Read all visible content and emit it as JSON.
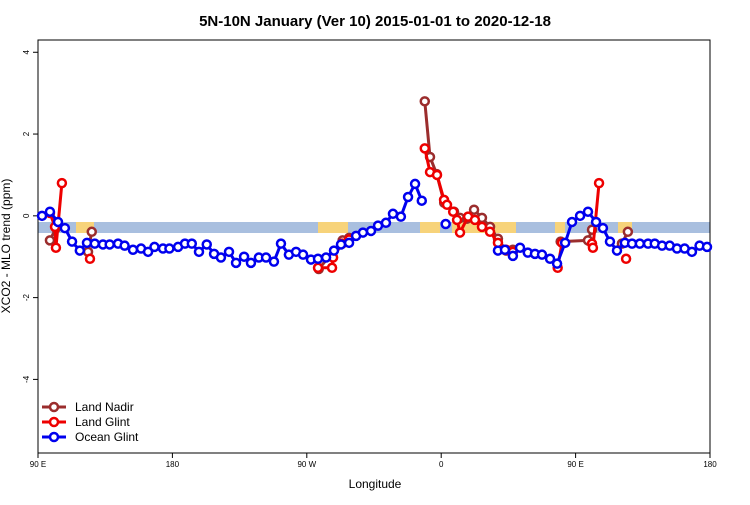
{
  "chart_data": {
    "type": "line",
    "title": "5N-10N January (Ver 10)   2015-01-01 to 2020-12-18",
    "xlabel": "Longitude",
    "ylabel": "XCO2 - MLO trend (ppm)",
    "xlim": [
      90,
      540
    ],
    "ylim": [
      -5.8,
      4.3
    ],
    "xticks": [
      {
        "value": 90,
        "label": "90 E"
      },
      180,
      {
        "value": 270,
        "label": "90 W"
      },
      {
        "value": 360,
        "label": "0"
      },
      {
        "value": 450,
        "label": "90 E"
      },
      {
        "value": 540,
        "label": "180"
      }
    ],
    "yticks": [
      4,
      2,
      0,
      -2,
      -4
    ],
    "legend": "bottom-left",
    "series": [
      {
        "name": "Land Nadir",
        "color": "#9b2d2d",
        "x": [
          98,
          102,
          110,
          123.5,
          126,
          200,
          278,
          294,
          298.3,
          330,
          349,
          352.5,
          357,
          362,
          368.6,
          372.6,
          377.3,
          382,
          387.3,
          392.7,
          398,
          403.4,
          408,
          420,
          440,
          458.3,
          461,
          470,
          481,
          485
        ],
        "values": [
          -0.6,
          -0.3,
          null,
          -0.88,
          -0.39,
          null,
          -1.3,
          -0.6,
          -0.54,
          null,
          2.8,
          1.44,
          1.02,
          0.32,
          0.1,
          -0.05,
          -0.07,
          0.15,
          -0.05,
          -0.27,
          -0.56,
          -0.85,
          -0.83,
          null,
          -0.63,
          -0.6,
          -0.34,
          null,
          -0.68,
          -0.39
        ]
      },
      {
        "name": "Land Glint",
        "color": "#ee0000",
        "x": [
          98,
          101.4,
          102,
          106,
          115,
          124.8,
          200,
          277.5,
          286.9,
          287.6,
          293.6,
          298.3,
          330,
          349,
          352.5,
          357.2,
          361.9,
          363.9,
          368,
          370.6,
          372.6,
          378,
          382.6,
          387.3,
          392.7,
          398,
          403.4,
          408,
          420,
          438,
          440.9,
          450,
          461,
          461.6,
          465.7,
          475,
          483.8
        ],
        "values": [
          0.07,
          -0.27,
          -0.78,
          0.8,
          null,
          -1.05,
          null,
          -1.27,
          -1.27,
          -1.02,
          -0.68,
          -0.58,
          null,
          1.65,
          1.07,
          1.0,
          0.39,
          0.27,
          0.1,
          -0.1,
          -0.41,
          -0.02,
          -0.1,
          -0.27,
          -0.39,
          -0.66,
          -0.83,
          -0.88,
          null,
          -1.27,
          -0.66,
          null,
          -0.68,
          -0.78,
          0.8,
          null,
          -1.05
        ]
      },
      {
        "name": "Ocean Glint",
        "color": "#0000ee",
        "x": [
          92.7,
          98,
          103.4,
          108,
          112.8,
          118,
          122.8,
          128,
          133.5,
          138,
          143.6,
          148,
          153.6,
          159,
          163.7,
          168,
          173.7,
          178,
          183.8,
          188.4,
          193,
          197.8,
          203,
          207.9,
          212.5,
          217.9,
          222.6,
          228,
          232.6,
          237.9,
          242.7,
          248,
          252.7,
          258,
          262.8,
          267.5,
          272.8,
          277.5,
          282.9,
          288.2,
          292.9,
          298.3,
          303,
          307.6,
          313,
          317.7,
          323,
          327.7,
          333,
          337.8,
          342.5,
          347,
          355,
          363,
          380,
          398,
          402.7,
          408,
          412.8,
          418,
          422.8,
          427.5,
          432.9,
          437.6,
          443,
          447.6,
          453,
          458.3,
          463.7,
          468.3,
          473,
          477.7,
          483,
          487.8,
          493,
          498.5,
          503,
          507.9,
          513,
          517.9,
          523,
          527.9,
          533,
          538
        ],
        "values": [
          0,
          0.1,
          -0.15,
          -0.3,
          -0.63,
          -0.85,
          -0.66,
          -0.68,
          -0.7,
          -0.7,
          -0.68,
          -0.73,
          -0.83,
          -0.8,
          -0.88,
          -0.76,
          -0.8,
          -0.8,
          -0.76,
          -0.68,
          -0.68,
          -0.88,
          -0.7,
          -0.93,
          -1.02,
          -0.88,
          -1.15,
          -1.0,
          -1.15,
          -1.02,
          -1.02,
          -1.12,
          -0.68,
          -0.95,
          -0.88,
          -0.95,
          -1.07,
          -1.05,
          -1.02,
          -0.85,
          -0.7,
          -0.66,
          -0.49,
          -0.41,
          -0.37,
          -0.24,
          -0.17,
          0.05,
          -0.02,
          0.46,
          0.78,
          0.37,
          null,
          -0.2,
          null,
          -0.85,
          -0.83,
          -0.98,
          -0.78,
          -0.9,
          -0.93,
          -0.95,
          -1.05,
          -1.17,
          -0.66,
          -0.15,
          0,
          0.1,
          -0.15,
          -0.3,
          -0.63,
          -0.85,
          -0.66,
          -0.68,
          -0.68,
          -0.68,
          -0.68,
          -0.73,
          -0.73,
          -0.8,
          -0.8,
          -0.88,
          -0.73,
          -0.76
        ]
      }
    ]
  }
}
